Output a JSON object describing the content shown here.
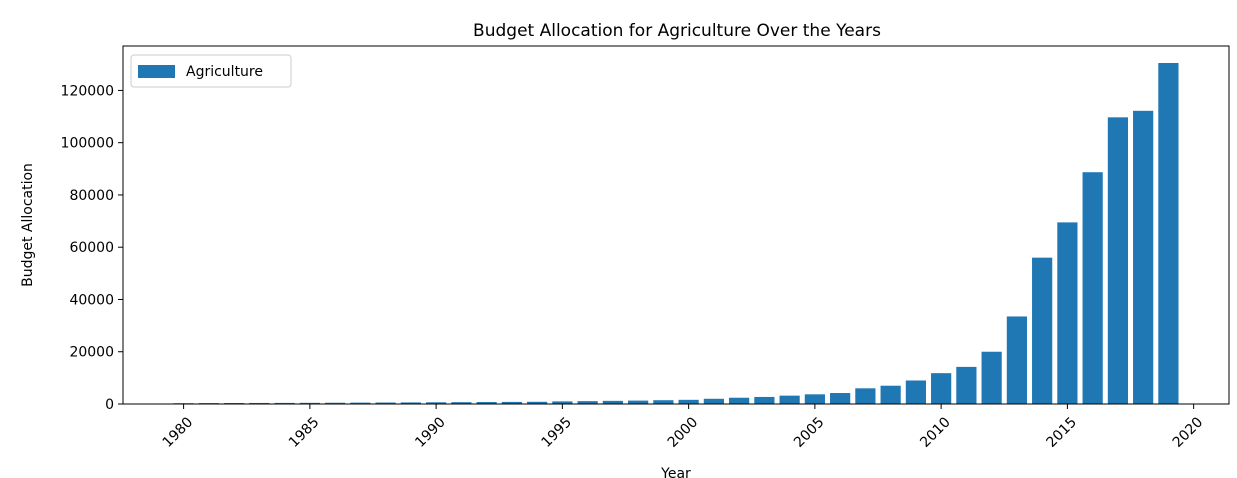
{
  "chart_data": {
    "type": "bar",
    "title": "Budget Allocation for Agriculture Over the Years",
    "xlabel": "Year",
    "ylabel": "Budget Allocation",
    "x": [
      1980,
      1981,
      1982,
      1983,
      1984,
      1985,
      1986,
      1987,
      1988,
      1989,
      1990,
      1991,
      1992,
      1993,
      1994,
      1995,
      1996,
      1997,
      1998,
      1999,
      2000,
      2001,
      2002,
      2003,
      2004,
      2005,
      2006,
      2007,
      2008,
      2009,
      2010,
      2011,
      2012,
      2013,
      2014,
      2015,
      2016,
      2017,
      2018,
      2019
    ],
    "series": [
      {
        "name": "Agriculture",
        "color": "#1f77b4",
        "values": [
          300,
          350,
          380,
          400,
          420,
          450,
          480,
          520,
          560,
          600,
          650,
          700,
          750,
          800,
          850,
          1000,
          1100,
          1200,
          1300,
          1450,
          1600,
          2000,
          2400,
          2700,
          3200,
          3700,
          4200,
          6000,
          7000,
          9000,
          11800,
          14200,
          20000,
          33500,
          56000,
          69500,
          88700,
          109700,
          112200,
          130500
        ]
      }
    ],
    "xlim": [
      1977.6,
      2021.4
    ],
    "ylim": [
      0,
      137000
    ],
    "xticks": [
      1980,
      1985,
      1990,
      1995,
      2000,
      2005,
      2010,
      2015,
      2020
    ],
    "yticks": [
      0,
      20000,
      40000,
      60000,
      80000,
      100000,
      120000
    ],
    "legend": "top-left",
    "grid": false
  }
}
